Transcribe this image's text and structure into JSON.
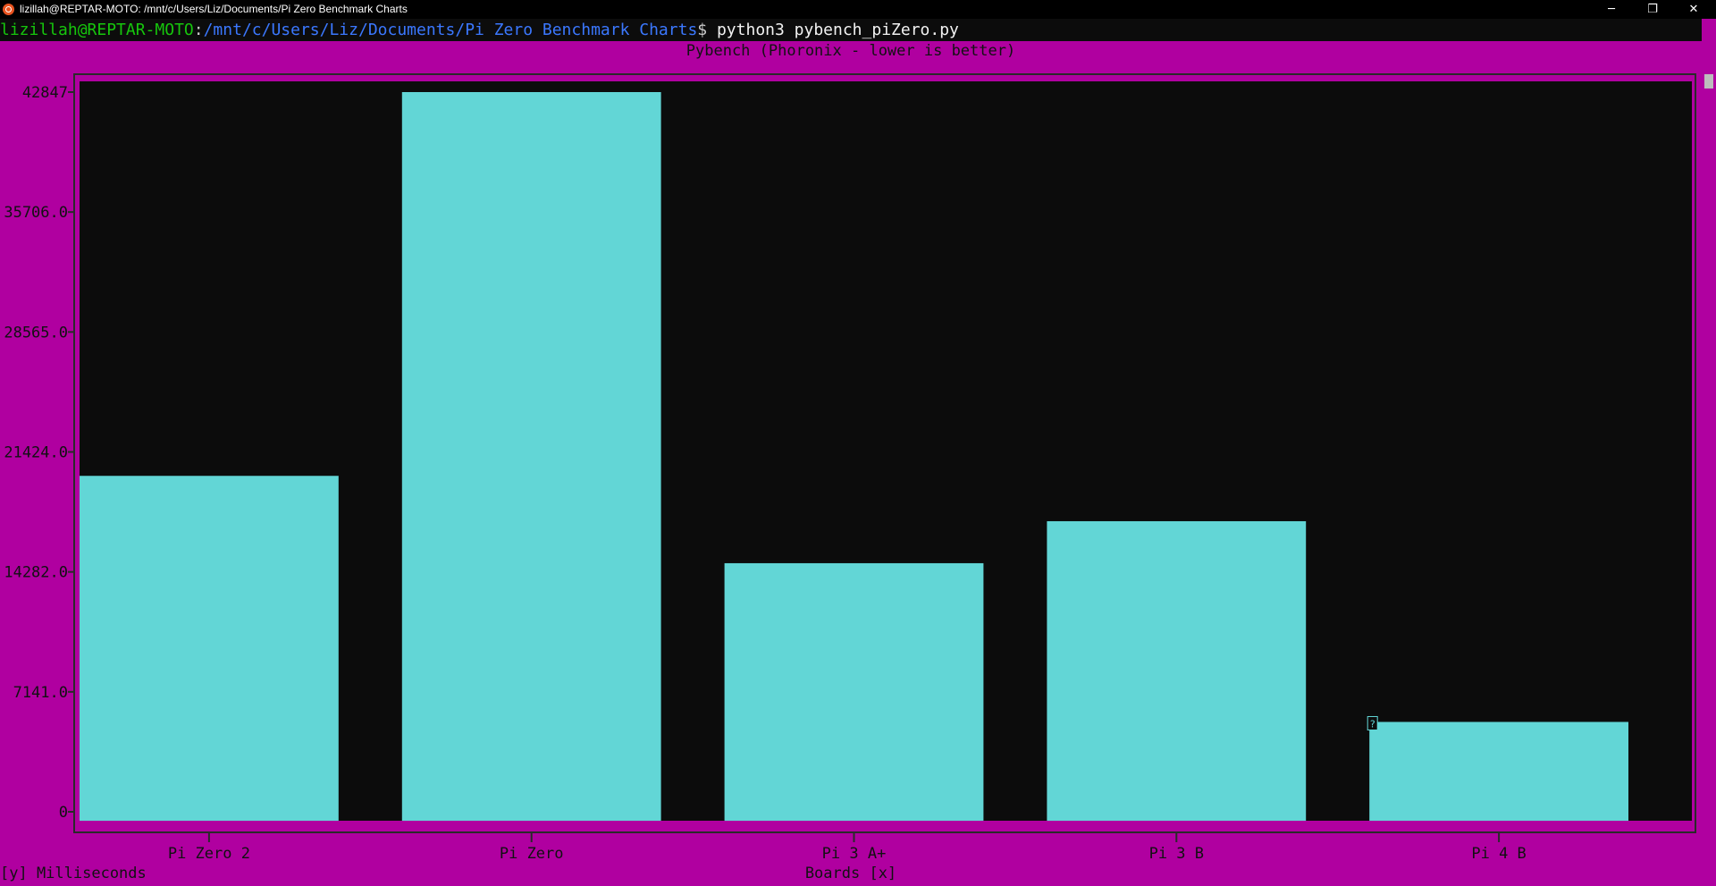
{
  "window": {
    "title": "lizillah@REPTAR-MOTO: /mnt/c/Users/Liz/Documents/Pi Zero Benchmark Charts",
    "min_glyph": "─",
    "max_glyph": "❐",
    "close_glyph": "✕"
  },
  "terminal": {
    "user_host": "lizillah@REPTAR-MOTO",
    "path": "/mnt/c/Users/Liz/Documents/Pi Zero Benchmark Charts",
    "prompt_symbol": "$ ",
    "command": "python3 pybench_piZero.py",
    "cursor_glyph": "?"
  },
  "colors": {
    "background": "#b000a0",
    "plot_background": "#0c0c0c",
    "bar": "#62d6d6",
    "user": "#16c60c",
    "path": "#3b78ff"
  },
  "chart_data": {
    "type": "bar",
    "title": "Pybench (Phoronix - lower is better)",
    "xlabel": "Boards [x]",
    "ylabel": "[y] Milliseconds",
    "categories": [
      "Pi Zero 2",
      "Pi Zero",
      "Pi 3 A+",
      "Pi 3 B",
      "Pi 4 B"
    ],
    "values": [
      20000,
      42847,
      14800,
      17300,
      5350
    ],
    "ylim": [
      0,
      42847
    ],
    "yticks": [
      0,
      7141.0,
      14282.0,
      21424.0,
      28565.0,
      35706.0,
      42847
    ],
    "ytick_labels": [
      "0",
      "7141.0",
      "14282.0",
      "21424.0",
      "28565.0",
      "35706.0",
      "42847"
    ],
    "grid": false,
    "legend": "none"
  }
}
